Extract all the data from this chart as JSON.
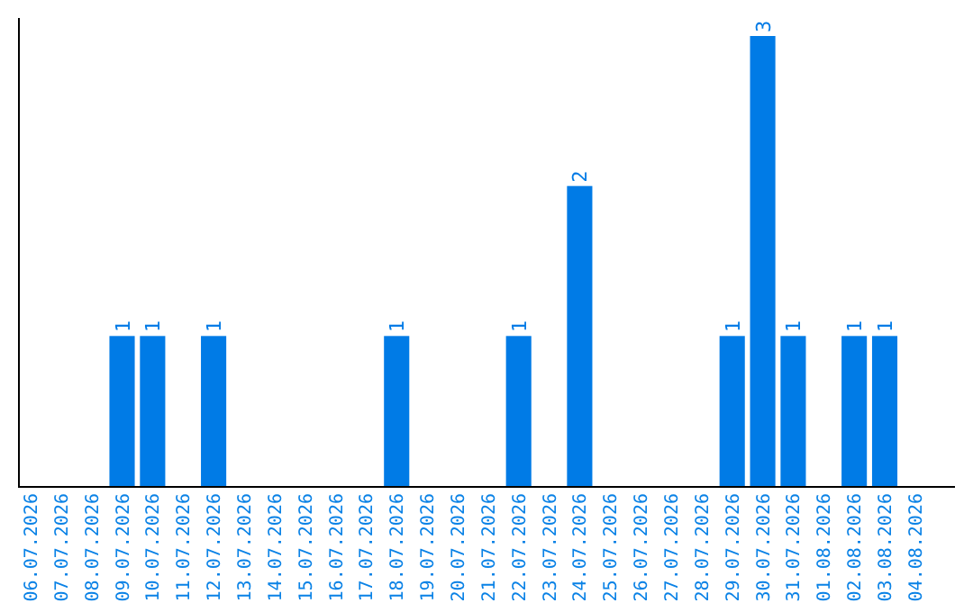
{
  "chart_data": {
    "type": "bar",
    "categories": [
      "06.07.2026",
      "07.07.2026",
      "08.07.2026",
      "09.07.2026",
      "10.07.2026",
      "11.07.2026",
      "12.07.2026",
      "13.07.2026",
      "14.07.2026",
      "15.07.2026",
      "16.07.2026",
      "17.07.2026",
      "18.07.2026",
      "19.07.2026",
      "20.07.2026",
      "21.07.2026",
      "22.07.2026",
      "23.07.2026",
      "24.07.2026",
      "25.07.2026",
      "26.07.2026",
      "27.07.2026",
      "28.07.2026",
      "29.07.2026",
      "30.07.2026",
      "31.07.2026",
      "01.08.2026",
      "02.08.2026",
      "03.08.2026",
      "04.08.2026"
    ],
    "values": [
      0,
      0,
      0,
      1,
      1,
      0,
      1,
      0,
      0,
      0,
      0,
      0,
      1,
      0,
      0,
      0,
      1,
      0,
      2,
      0,
      0,
      0,
      0,
      1,
      3,
      1,
      0,
      1,
      1,
      0
    ],
    "value_labels": [
      null,
      null,
      null,
      "1",
      "1",
      null,
      "1",
      null,
      null,
      null,
      null,
      null,
      "1",
      null,
      null,
      null,
      "1",
      null,
      "2",
      null,
      null,
      null,
      null,
      "1",
      "3",
      "1",
      null,
      "1",
      "1",
      null
    ],
    "color": "#007be6",
    "grid": false
  }
}
